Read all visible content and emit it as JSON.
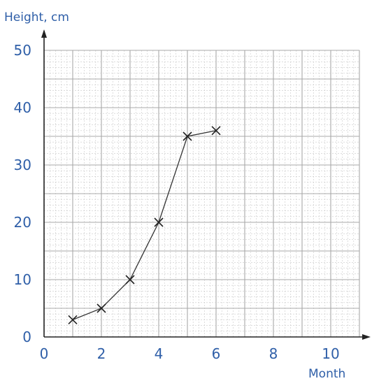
{
  "chart_data": {
    "type": "line",
    "ylabel": "Height, cm",
    "xlabel": "Month",
    "xlim": [
      0,
      11
    ],
    "ylim": [
      0,
      50
    ],
    "xticks": [
      0,
      2,
      4,
      6,
      8,
      10
    ],
    "yticks": [
      0,
      10,
      20,
      30,
      40,
      50
    ],
    "grid": true,
    "marker": "x",
    "series": [
      {
        "x": [
          1,
          2,
          3,
          4,
          5,
          6
        ],
        "y": [
          3,
          5,
          10,
          20,
          35,
          36
        ]
      }
    ]
  }
}
